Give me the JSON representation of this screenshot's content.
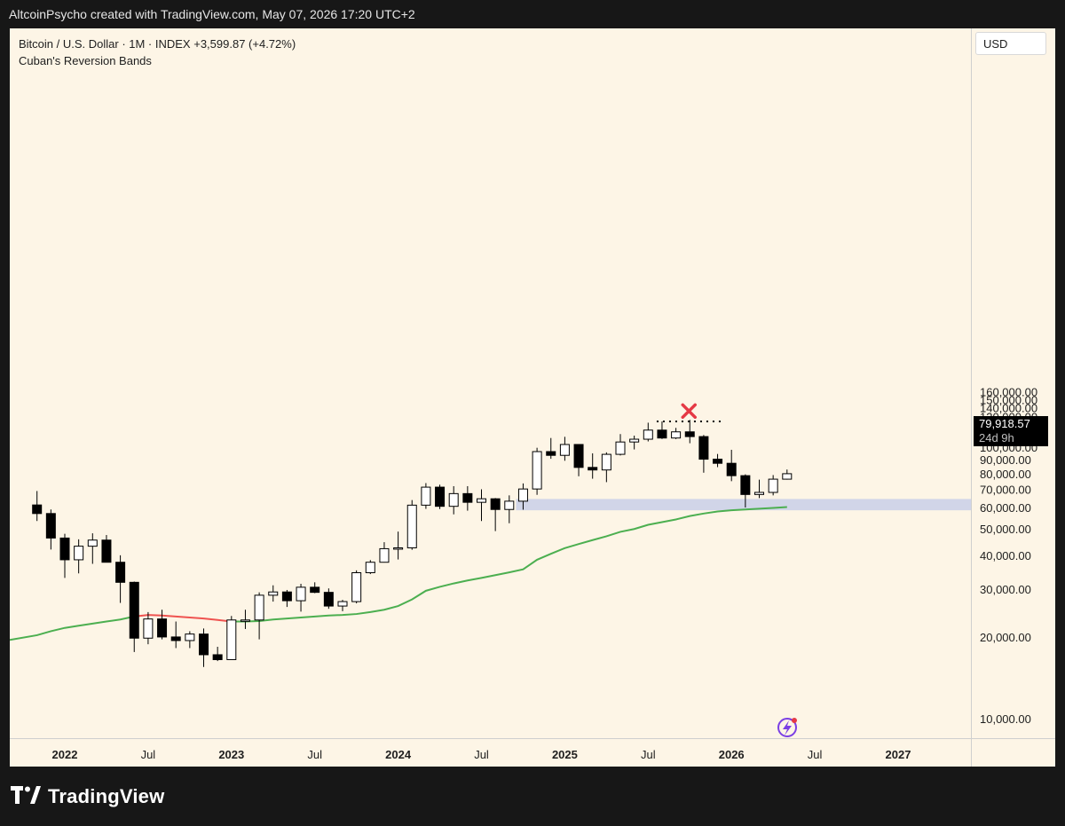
{
  "header": {
    "caption": "AltcoinPsycho created with TradingView.com, May 07, 2026 17:20 UTC+2"
  },
  "legend": {
    "symbol": "Bitcoin / U.S. Dollar · 1M · INDEX",
    "change": "+3,599.87 (+4.72%)",
    "indicator": "Cuban's Reversion Bands"
  },
  "price_axis": {
    "currency": "USD",
    "last_price": "79,918.57",
    "countdown": "24d 9h"
  },
  "footer": {
    "brand": "TradingView"
  },
  "colors": {
    "background": "#fdf5e6",
    "candle_up_fill": "#ffffff",
    "candle_down_fill": "#000000",
    "band_above": "#ef5350",
    "band_below": "#4caf50",
    "zone": "#c5cde8",
    "marker": "#e53945"
  },
  "icons": {
    "marker": "x-mark-icon",
    "alert": "lightning-icon",
    "logo": "tradingview-logo-icon"
  },
  "chart_data": {
    "type": "candlestick",
    "title": "Bitcoin / U.S. Dollar · 1M · INDEX",
    "interval": "1M",
    "y_scale": "log",
    "ylim": [
      9000,
      170000
    ],
    "yticks": [
      10000,
      20000,
      30000,
      40000,
      50000,
      60000,
      70000,
      80000,
      90000,
      100000,
      110000,
      120000,
      130000,
      140000,
      150000,
      160000
    ],
    "ytick_labels": [
      "10,000.00",
      "20,000.00",
      "30,000.00",
      "40,000.00",
      "50,000.00",
      "60,000.00",
      "70,000.00",
      "80,000.00",
      "90,000.00",
      "100,000.00",
      "110,000.00",
      "120,000.00",
      "130,000.00",
      "140,000.00",
      "150,000.00",
      "160,000.00"
    ],
    "x_ticks": [
      {
        "label": "2022",
        "date": "2022-01",
        "bold": true
      },
      {
        "label": "Jul",
        "date": "2022-07",
        "bold": false
      },
      {
        "label": "2023",
        "date": "2023-01",
        "bold": true
      },
      {
        "label": "Jul",
        "date": "2023-07",
        "bold": false
      },
      {
        "label": "2024",
        "date": "2024-01",
        "bold": true
      },
      {
        "label": "Jul",
        "date": "2024-07",
        "bold": false
      },
      {
        "label": "2025",
        "date": "2025-01",
        "bold": true
      },
      {
        "label": "Jul",
        "date": "2025-07",
        "bold": false
      },
      {
        "label": "2026",
        "date": "2026-01",
        "bold": true
      },
      {
        "label": "Jul",
        "date": "2026-07",
        "bold": false
      },
      {
        "label": "2027",
        "date": "2027-01",
        "bold": true
      }
    ],
    "candles": [
      {
        "date": "2021-11",
        "o": 61300,
        "h": 69000,
        "l": 53500,
        "c": 57000
      },
      {
        "date": "2021-12",
        "o": 57000,
        "h": 59000,
        "l": 42000,
        "c": 46300
      },
      {
        "date": "2022-01",
        "o": 46300,
        "h": 48000,
        "l": 33000,
        "c": 38500
      },
      {
        "date": "2022-02",
        "o": 38500,
        "h": 45800,
        "l": 34300,
        "c": 43200
      },
      {
        "date": "2022-03",
        "o": 43200,
        "h": 48200,
        "l": 37200,
        "c": 45500
      },
      {
        "date": "2022-04",
        "o": 45500,
        "h": 47500,
        "l": 37700,
        "c": 37700
      },
      {
        "date": "2022-05",
        "o": 37700,
        "h": 40000,
        "l": 26700,
        "c": 31800
      },
      {
        "date": "2022-06",
        "o": 31800,
        "h": 32000,
        "l": 17600,
        "c": 19800
      },
      {
        "date": "2022-07",
        "o": 19800,
        "h": 24700,
        "l": 18800,
        "c": 23300
      },
      {
        "date": "2022-08",
        "o": 23300,
        "h": 25200,
        "l": 19600,
        "c": 20000
      },
      {
        "date": "2022-09",
        "o": 20000,
        "h": 22800,
        "l": 18200,
        "c": 19400
      },
      {
        "date": "2022-10",
        "o": 19400,
        "h": 21000,
        "l": 18200,
        "c": 20500
      },
      {
        "date": "2022-11",
        "o": 20500,
        "h": 21500,
        "l": 15500,
        "c": 17200
      },
      {
        "date": "2022-12",
        "o": 17200,
        "h": 18400,
        "l": 16300,
        "c": 16500
      },
      {
        "date": "2023-01",
        "o": 16500,
        "h": 23900,
        "l": 16500,
        "c": 23100
      },
      {
        "date": "2023-02",
        "o": 23100,
        "h": 25200,
        "l": 21400,
        "c": 23100
      },
      {
        "date": "2023-03",
        "o": 23100,
        "h": 29200,
        "l": 19600,
        "c": 28500
      },
      {
        "date": "2023-04",
        "o": 28500,
        "h": 31000,
        "l": 27000,
        "c": 29300
      },
      {
        "date": "2023-05",
        "o": 29300,
        "h": 29800,
        "l": 25800,
        "c": 27200
      },
      {
        "date": "2023-06",
        "o": 27200,
        "h": 31400,
        "l": 24800,
        "c": 30500
      },
      {
        "date": "2023-07",
        "o": 30500,
        "h": 31800,
        "l": 29000,
        "c": 29200
      },
      {
        "date": "2023-08",
        "o": 29200,
        "h": 30200,
        "l": 25400,
        "c": 26000
      },
      {
        "date": "2023-09",
        "o": 26000,
        "h": 27400,
        "l": 24900,
        "c": 27000
      },
      {
        "date": "2023-10",
        "o": 27000,
        "h": 35200,
        "l": 26600,
        "c": 34500
      },
      {
        "date": "2023-11",
        "o": 34500,
        "h": 38400,
        "l": 34100,
        "c": 37700
      },
      {
        "date": "2023-12",
        "o": 37700,
        "h": 44700,
        "l": 37600,
        "c": 42300
      },
      {
        "date": "2024-01",
        "o": 42300,
        "h": 48900,
        "l": 38600,
        "c": 42600
      },
      {
        "date": "2024-02",
        "o": 42600,
        "h": 63900,
        "l": 41900,
        "c": 61200
      },
      {
        "date": "2024-03",
        "o": 61200,
        "h": 73800,
        "l": 59300,
        "c": 71300
      },
      {
        "date": "2024-04",
        "o": 71300,
        "h": 72800,
        "l": 59200,
        "c": 60600
      },
      {
        "date": "2024-05",
        "o": 60600,
        "h": 71900,
        "l": 56600,
        "c": 67500
      },
      {
        "date": "2024-06",
        "o": 67500,
        "h": 71900,
        "l": 58400,
        "c": 62700
      },
      {
        "date": "2024-07",
        "o": 62700,
        "h": 70000,
        "l": 53500,
        "c": 64600
      },
      {
        "date": "2024-08",
        "o": 64600,
        "h": 65000,
        "l": 49100,
        "c": 59000
      },
      {
        "date": "2024-09",
        "o": 59000,
        "h": 66500,
        "l": 52500,
        "c": 63300
      },
      {
        "date": "2024-10",
        "o": 63300,
        "h": 73600,
        "l": 58900,
        "c": 70200
      },
      {
        "date": "2024-11",
        "o": 70200,
        "h": 99600,
        "l": 66800,
        "c": 96400
      },
      {
        "date": "2024-12",
        "o": 96400,
        "h": 108200,
        "l": 90700,
        "c": 93400
      },
      {
        "date": "2025-01",
        "o": 93400,
        "h": 109300,
        "l": 89200,
        "c": 102400
      },
      {
        "date": "2025-02",
        "o": 102400,
        "h": 102700,
        "l": 78200,
        "c": 84300
      },
      {
        "date": "2025-03",
        "o": 84300,
        "h": 95000,
        "l": 76600,
        "c": 82500
      },
      {
        "date": "2025-04",
        "o": 82500,
        "h": 95800,
        "l": 74400,
        "c": 94200
      },
      {
        "date": "2025-05",
        "o": 94200,
        "h": 111900,
        "l": 93300,
        "c": 104600
      },
      {
        "date": "2025-06",
        "o": 104600,
        "h": 110400,
        "l": 98200,
        "c": 107100
      },
      {
        "date": "2025-07",
        "o": 107100,
        "h": 123200,
        "l": 105100,
        "c": 115700
      },
      {
        "date": "2025-08",
        "o": 115700,
        "h": 124500,
        "l": 107300,
        "c": 108200
      },
      {
        "date": "2025-09",
        "o": 108200,
        "h": 117900,
        "l": 107200,
        "c": 114000
      },
      {
        "date": "2025-10",
        "o": 114000,
        "h": 126200,
        "l": 103500,
        "c": 109500
      },
      {
        "date": "2025-11",
        "o": 109500,
        "h": 111000,
        "l": 80600,
        "c": 90400
      },
      {
        "date": "2025-12",
        "o": 90400,
        "h": 94500,
        "l": 84500,
        "c": 87300
      },
      {
        "date": "2026-01",
        "o": 87300,
        "h": 97900,
        "l": 75000,
        "c": 78600
      },
      {
        "date": "2026-02",
        "o": 78600,
        "h": 79500,
        "l": 60000,
        "c": 67000
      },
      {
        "date": "2026-03",
        "o": 67000,
        "h": 76000,
        "l": 65000,
        "c": 68200
      },
      {
        "date": "2026-04",
        "o": 68200,
        "h": 79000,
        "l": 66500,
        "c": 76300
      },
      {
        "date": "2026-05",
        "o": 76300,
        "h": 82800,
        "l": 76000,
        "c": 79918.57
      }
    ],
    "reversion_band": {
      "name": "Cuban's Reversion Bands",
      "points": [
        {
          "date": "2021-10",
          "value": 19500
        },
        {
          "date": "2021-11",
          "value": 20300
        },
        {
          "date": "2021-12",
          "value": 21000
        },
        {
          "date": "2022-01",
          "value": 21600
        },
        {
          "date": "2022-02",
          "value": 22000
        },
        {
          "date": "2022-03",
          "value": 22400
        },
        {
          "date": "2022-04",
          "value": 22800
        },
        {
          "date": "2022-05",
          "value": 23200
        },
        {
          "date": "2022-06",
          "value": 23800
        },
        {
          "date": "2022-07",
          "value": 24100
        },
        {
          "date": "2022-08",
          "value": 24000
        },
        {
          "date": "2022-09",
          "value": 23800
        },
        {
          "date": "2022-10",
          "value": 23600
        },
        {
          "date": "2022-11",
          "value": 23400
        },
        {
          "date": "2022-12",
          "value": 23100
        },
        {
          "date": "2023-01",
          "value": 22800
        },
        {
          "date": "2023-02",
          "value": 22800
        },
        {
          "date": "2023-03",
          "value": 22900
        },
        {
          "date": "2023-04",
          "value": 23200
        },
        {
          "date": "2023-05",
          "value": 23400
        },
        {
          "date": "2023-06",
          "value": 23600
        },
        {
          "date": "2023-07",
          "value": 23800
        },
        {
          "date": "2023-08",
          "value": 24000
        },
        {
          "date": "2023-09",
          "value": 24100
        },
        {
          "date": "2023-10",
          "value": 24300
        },
        {
          "date": "2023-11",
          "value": 24700
        },
        {
          "date": "2023-12",
          "value": 25200
        },
        {
          "date": "2024-01",
          "value": 26000
        },
        {
          "date": "2024-02",
          "value": 27500
        },
        {
          "date": "2024-03",
          "value": 29600
        },
        {
          "date": "2024-04",
          "value": 30600
        },
        {
          "date": "2024-05",
          "value": 31500
        },
        {
          "date": "2024-06",
          "value": 32300
        },
        {
          "date": "2024-07",
          "value": 33000
        },
        {
          "date": "2024-08",
          "value": 33800
        },
        {
          "date": "2024-09",
          "value": 34600
        },
        {
          "date": "2024-10",
          "value": 35500
        },
        {
          "date": "2024-11",
          "value": 38500
        },
        {
          "date": "2024-12",
          "value": 40500
        },
        {
          "date": "2025-01",
          "value": 42500
        },
        {
          "date": "2025-02",
          "value": 44000
        },
        {
          "date": "2025-03",
          "value": 45500
        },
        {
          "date": "2025-04",
          "value": 47000
        },
        {
          "date": "2025-05",
          "value": 48800
        },
        {
          "date": "2025-06",
          "value": 50000
        },
        {
          "date": "2025-07",
          "value": 51800
        },
        {
          "date": "2025-08",
          "value": 53000
        },
        {
          "date": "2025-09",
          "value": 54200
        },
        {
          "date": "2025-10",
          "value": 55800
        },
        {
          "date": "2025-11",
          "value": 57000
        },
        {
          "date": "2025-12",
          "value": 58000
        },
        {
          "date": "2026-01",
          "value": 58600
        },
        {
          "date": "2026-02",
          "value": 59000
        },
        {
          "date": "2026-03",
          "value": 59400
        },
        {
          "date": "2026-04",
          "value": 59800
        },
        {
          "date": "2026-05",
          "value": 60200
        }
      ],
      "above_segment": {
        "from": "2022-06",
        "to": "2023-01"
      }
    },
    "support_zone": {
      "from": "2024-10",
      "low": 58600,
      "high": 64500
    },
    "ath_line": {
      "from": "2025-08",
      "to": "2025-12",
      "value": 124500
    },
    "marker": {
      "date": "2025-10",
      "value": 136000
    }
  }
}
